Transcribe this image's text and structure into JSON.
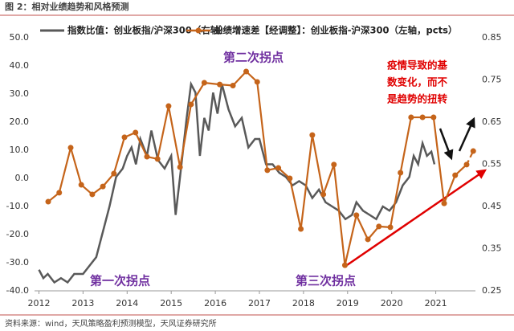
{
  "chart_data": {
    "type": "line",
    "title": "图 2：相对业绩趋势和风格预测",
    "source": "资料来源：wind，天风策略盈利预测模型，天风证券研究所",
    "annotations": {
      "first": "第一次拐点",
      "second": "第二次拐点",
      "third": "第三次拐点",
      "note": [
        "疫情导致的基",
        "数变化，而不",
        "是趋势的扭转"
      ]
    },
    "xlim": [
      2011.9,
      2021.9
    ],
    "xticks": [
      2012,
      2013,
      2014,
      2015,
      2016,
      2017,
      2018,
      2019,
      2020,
      2021
    ],
    "ylim": [
      -40,
      50
    ],
    "yticks": [
      {
        "value": 50,
        "label": "50.0"
      },
      {
        "value": 40,
        "label": "40.0"
      },
      {
        "value": 30,
        "label": "30.0"
      },
      {
        "value": 20,
        "label": "20.0"
      },
      {
        "value": 10,
        "label": "10.0"
      },
      {
        "value": 0,
        "label": "0.0"
      },
      {
        "value": -10,
        "label": "-10.0"
      },
      {
        "value": -20,
        "label": "-20.0"
      },
      {
        "value": -30,
        "label": "-30.0"
      },
      {
        "value": -40,
        "label": "-40.0"
      }
    ],
    "y2lim": [
      0.25,
      0.85
    ],
    "y2ticks": [
      0.85,
      0.75,
      0.65,
      0.55,
      0.45,
      0.35,
      0.25
    ],
    "grid": false,
    "series": [
      {
        "name": "指数比值：创业板指/沪深300（右轴）",
        "color": "#595959",
        "axis": "y2",
        "x": [
          2012.0,
          2012.1,
          2012.2,
          2012.35,
          2012.5,
          2012.65,
          2012.8,
          2013.0,
          2013.15,
          2013.3,
          2013.45,
          2013.6,
          2013.75,
          2013.9,
          2014.0,
          2014.1,
          2014.2,
          2014.3,
          2014.45,
          2014.55,
          2014.7,
          2014.85,
          2015.0,
          2015.1,
          2015.2,
          2015.35,
          2015.45,
          2015.55,
          2015.65,
          2015.75,
          2015.85,
          2015.95,
          2016.05,
          2016.15,
          2016.3,
          2016.45,
          2016.6,
          2016.75,
          2016.9,
          2017.0,
          2017.15,
          2017.3,
          2017.45,
          2017.6,
          2017.75,
          2017.9,
          2018.05,
          2018.2,
          2018.35,
          2018.5,
          2018.65,
          2018.8,
          2018.95,
          2019.1,
          2019.2,
          2019.35,
          2019.5,
          2019.65,
          2019.8,
          2019.95,
          2020.1,
          2020.25,
          2020.4,
          2020.5,
          2020.6,
          2020.7,
          2020.8,
          2020.9,
          2020.97
        ],
        "values": [
          0.3,
          0.28,
          0.29,
          0.27,
          0.28,
          0.27,
          0.29,
          0.29,
          0.31,
          0.33,
          0.39,
          0.45,
          0.52,
          0.54,
          0.57,
          0.59,
          0.55,
          0.61,
          0.57,
          0.63,
          0.56,
          0.54,
          0.57,
          0.43,
          0.52,
          0.66,
          0.74,
          0.72,
          0.57,
          0.66,
          0.63,
          0.72,
          0.67,
          0.74,
          0.68,
          0.64,
          0.66,
          0.59,
          0.61,
          0.61,
          0.55,
          0.55,
          0.53,
          0.52,
          0.5,
          0.51,
          0.5,
          0.47,
          0.49,
          0.46,
          0.45,
          0.44,
          0.42,
          0.43,
          0.46,
          0.44,
          0.43,
          0.42,
          0.45,
          0.44,
          0.46,
          0.5,
          0.52,
          0.57,
          0.55,
          0.6,
          0.57,
          0.58,
          0.55
        ]
      },
      {
        "name": "业绩增速差【经调整】：创业板指-沪深300（左轴，pcts）",
        "color": "#c5641a",
        "axis": "y",
        "dashed_from": 37,
        "x": [
          2012.21,
          2012.46,
          2012.72,
          2012.96,
          2013.21,
          2013.45,
          2013.7,
          2013.94,
          2014.19,
          2014.45,
          2014.69,
          2014.94,
          2015.2,
          2015.45,
          2015.75,
          2016.1,
          2016.4,
          2016.7,
          2016.95,
          2017.18,
          2017.43,
          2017.69,
          2017.94,
          2018.2,
          2018.45,
          2018.69,
          2018.94,
          2019.2,
          2019.46,
          2019.71,
          2019.97,
          2020.2,
          2020.44,
          2020.7,
          2020.95,
          2021.19,
          2021.44,
          2021.7,
          2021.85
        ],
        "values": [
          -8.3,
          -5.1,
          10.9,
          -2.3,
          -5.7,
          -2.9,
          1.7,
          14.6,
          16.3,
          7.7,
          6.9,
          25.7,
          4.0,
          26.3,
          34.0,
          33.4,
          33.0,
          38.0,
          34.3,
          2.9,
          3.7,
          0.0,
          -18.0,
          15.4,
          -5.7,
          4.9,
          -30.9,
          -13.1,
          -21.7,
          -17.1,
          -17.4,
          2.0,
          21.7,
          21.7,
          21.7,
          -8.9,
          1.1,
          4.9,
          9.7
        ]
      }
    ]
  }
}
